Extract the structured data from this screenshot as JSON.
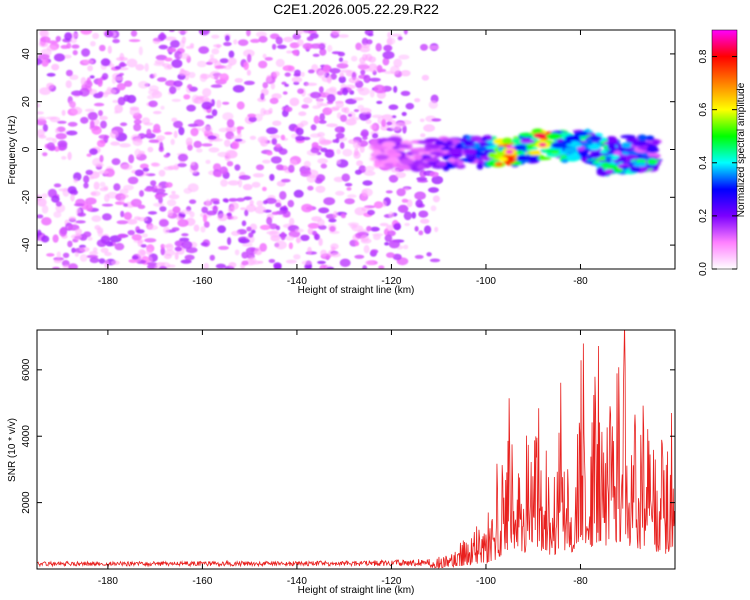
{
  "figure_title": "C2E1.2026.005.22.29.R22",
  "chart_data": [
    {
      "type": "heatmap",
      "title": "C2E1.2026.005.22.29.R22",
      "xlabel": "Height of straight line (km)",
      "ylabel": "Frequency (Hz)",
      "xlim": [
        -195,
        -60
      ],
      "ylim": [
        -50,
        50
      ],
      "xticks": [
        -180,
        -160,
        -140,
        -120,
        -100,
        -80
      ],
      "yticks": [
        -40,
        -20,
        0,
        20,
        40
      ],
      "colorbar": {
        "label": "Normalized spectral amplitude",
        "range": [
          0.0,
          0.9
        ],
        "ticks": [
          0.0,
          0.2,
          0.4,
          0.6,
          0.8
        ],
        "colors": [
          "#ffffff",
          "#ff80ff",
          "#7b00ff",
          "#0000ff",
          "#00ffff",
          "#00ff00",
          "#ffff00",
          "#ff8000",
          "#ff0000",
          "#ff00ff"
        ]
      },
      "noise_region": {
        "x": [
          -195,
          -110
        ],
        "y": [
          -50,
          50
        ],
        "amplitude": [
          0.05,
          0.15
        ]
      },
      "signal_band": [
        {
          "x": -124,
          "freq": -2,
          "amp": 0.15
        },
        {
          "x": -116,
          "freq": -2,
          "amp": 0.18
        },
        {
          "x": -110,
          "freq": -2,
          "amp": 0.2
        },
        {
          "x": -104,
          "freq": -1,
          "amp": 0.35
        },
        {
          "x": -100,
          "freq": -1,
          "amp": 0.4
        },
        {
          "x": -95,
          "freq": -1,
          "amp": 0.88
        },
        {
          "x": -92,
          "freq": 0,
          "amp": 0.4
        },
        {
          "x": -88,
          "freq": 2,
          "amp": 0.86
        },
        {
          "x": -84,
          "freq": 1,
          "amp": 0.45
        },
        {
          "x": -80,
          "freq": 2,
          "amp": 0.4
        },
        {
          "x": -76,
          "freq": 0,
          "amp": 0.5
        },
        {
          "x": -72,
          "freq": -1,
          "amp": 0.35
        },
        {
          "x": -68,
          "freq": 0,
          "amp": 0.35
        },
        {
          "x": -64,
          "freq": 0,
          "amp": 0.3
        }
      ],
      "secondary_band": [
        {
          "x": -76,
          "freq": -8,
          "amp": 0.45
        },
        {
          "x": -70,
          "freq": -8,
          "amp": 0.45
        },
        {
          "x": -64,
          "freq": -6,
          "amp": 0.5
        }
      ]
    },
    {
      "type": "line",
      "xlabel": "Height of straight line (km)",
      "ylabel": "SNR (10 * v/v)",
      "xlim": [
        -195,
        -60
      ],
      "ylim": [
        0,
        7200
      ],
      "xticks": [
        -180,
        -160,
        -140,
        -120,
        -100,
        -80
      ],
      "yticks": [
        2000,
        4000,
        6000
      ],
      "color": "#e8201e",
      "series": [
        {
          "name": "SNR",
          "x": [
            -195,
            -185,
            -175,
            -165,
            -155,
            -145,
            -135,
            -125,
            -118,
            -112,
            -108,
            -105,
            -102,
            -100,
            -98,
            -96,
            -95,
            -93,
            -90,
            -88,
            -86,
            -84,
            -82,
            -80,
            -78,
            -76,
            -74,
            -72,
            -70,
            -68,
            -66,
            -64,
            -62,
            -60
          ],
          "y": [
            150,
            150,
            150,
            150,
            160,
            160,
            170,
            180,
            200,
            250,
            400,
            800,
            1300,
            1500,
            2300,
            4200,
            5300,
            3600,
            4000,
            3800,
            3200,
            4300,
            3700,
            7200,
            5000,
            6500,
            4500,
            7200,
            5800,
            5000,
            4600,
            3300,
            3800,
            4800
          ]
        }
      ]
    }
  ]
}
